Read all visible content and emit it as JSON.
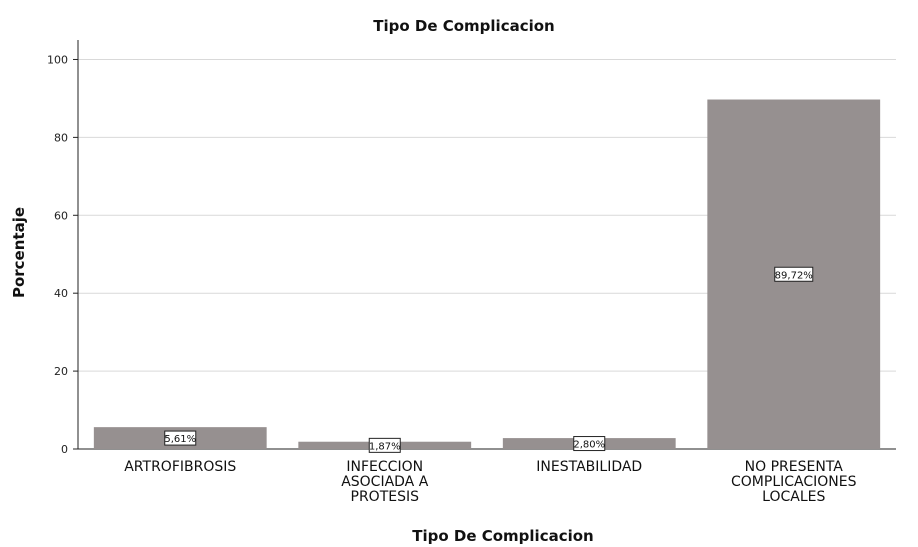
{
  "colors": {
    "bar": "#969090",
    "grid": "#d9d9d9",
    "axis": "#222222",
    "label_box_bg": "#ffffff",
    "label_box_border": "#222222"
  },
  "chart_data": {
    "type": "bar",
    "title": "Tipo De Complicacion",
    "xlabel": "Tipo De Complicacion",
    "ylabel": "Porcentaje",
    "ylim": [
      0,
      105
    ],
    "yticks": [
      0,
      20,
      40,
      60,
      80,
      100
    ],
    "grid": true,
    "categories": [
      [
        "ARTROFIBROSIS"
      ],
      [
        "INFECCION",
        "ASOCIADA A",
        "PROTESIS"
      ],
      [
        "INESTABILIDAD"
      ],
      [
        "NO PRESENTA",
        "COMPLICACIONES",
        "LOCALES"
      ]
    ],
    "values": [
      5.61,
      1.87,
      2.8,
      89.72
    ],
    "data_labels": [
      "5,61%",
      "1,87%",
      "2,80%",
      "89,72%"
    ]
  }
}
